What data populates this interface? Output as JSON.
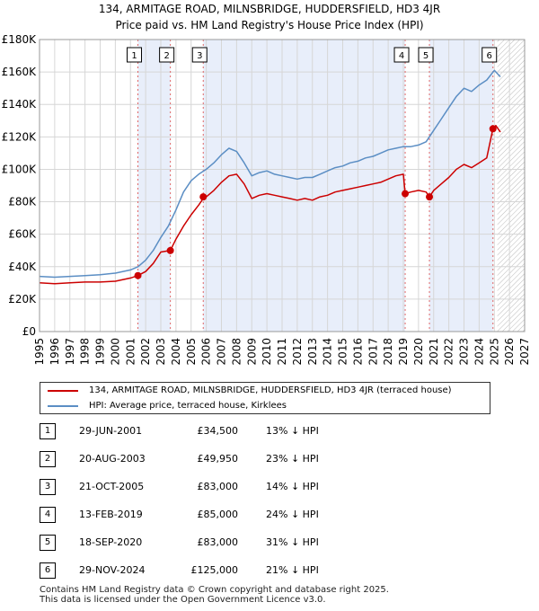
{
  "chart_data": {
    "type": "line",
    "title": "134, ARMITAGE ROAD, MILNSBRIDGE, HUDDERSFIELD, HD3 4JR",
    "subtitle": "Price paid vs. HM Land Registry's House Price Index (HPI)",
    "xlim": [
      1995,
      2027
    ],
    "ylim": [
      0,
      180000
    ],
    "x_ticks": [
      "1995",
      "1996",
      "1997",
      "1998",
      "1999",
      "2000",
      "2001",
      "2002",
      "2003",
      "2004",
      "2005",
      "2006",
      "2007",
      "2008",
      "2009",
      "2010",
      "2011",
      "2012",
      "2013",
      "2014",
      "2015",
      "2016",
      "2017",
      "2018",
      "2019",
      "2020",
      "2021",
      "2022",
      "2023",
      "2024",
      "2025",
      "2026",
      "2027"
    ],
    "y_ticks": [
      {
        "value": 0,
        "label": "£0"
      },
      {
        "value": 20000,
        "label": "£20K"
      },
      {
        "value": 40000,
        "label": "£40K"
      },
      {
        "value": 60000,
        "label": "£60K"
      },
      {
        "value": 80000,
        "label": "£80K"
      },
      {
        "value": 100000,
        "label": "£100K"
      },
      {
        "value": 120000,
        "label": "£120K"
      },
      {
        "value": 140000,
        "label": "£140K"
      },
      {
        "value": 160000,
        "label": "£160K"
      },
      {
        "value": 180000,
        "label": "£180K"
      }
    ],
    "future_start": 2025.2,
    "series": [
      {
        "name": "134, ARMITAGE ROAD, MILNSBRIDGE, HUDDERSFIELD, HD3 4JR (terraced house)",
        "color": "#cc0000",
        "x": [
          1995.0,
          1996.0,
          1997.0,
          1998.0,
          1999.0,
          2000.0,
          2001.0,
          2001.49,
          2002.0,
          2002.5,
          2003.0,
          2003.63,
          2004.0,
          2004.5,
          2005.0,
          2005.5,
          2005.8,
          2006.0,
          2006.5,
          2007.0,
          2007.5,
          2008.0,
          2008.5,
          2009.0,
          2009.5,
          2010.0,
          2010.5,
          2011.0,
          2011.5,
          2012.0,
          2012.5,
          2013.0,
          2013.5,
          2014.0,
          2014.5,
          2015.0,
          2015.5,
          2016.0,
          2016.5,
          2017.0,
          2017.5,
          2018.0,
          2018.5,
          2019.0,
          2019.12,
          2019.5,
          2020.0,
          2020.5,
          2020.72,
          2021.0,
          2021.5,
          2022.0,
          2022.5,
          2023.0,
          2023.5,
          2024.0,
          2024.5,
          2024.91,
          2025.1,
          2025.4
        ],
        "values": [
          30000,
          29500,
          30000,
          30500,
          30500,
          31000,
          33000,
          34500,
          37000,
          42000,
          49000,
          49950,
          57000,
          65000,
          72000,
          78000,
          82000,
          83000,
          87000,
          92000,
          96000,
          97000,
          91000,
          82000,
          84000,
          85000,
          84000,
          83000,
          82000,
          81000,
          82000,
          81000,
          83000,
          84000,
          86000,
          87000,
          88000,
          89000,
          90000,
          91000,
          92000,
          94000,
          96000,
          97000,
          85000,
          86000,
          87000,
          86000,
          83000,
          87000,
          91000,
          95000,
          100000,
          103000,
          101000,
          104000,
          107000,
          125000,
          127000,
          123000
        ]
      },
      {
        "name": "HPI: Average price, terraced house, Kirklees",
        "color": "#5b8ec4",
        "x": [
          1995.0,
          1996.0,
          1997.0,
          1998.0,
          1999.0,
          2000.0,
          2001.0,
          2001.5,
          2002.0,
          2002.5,
          2003.0,
          2003.5,
          2004.0,
          2004.5,
          2005.0,
          2005.5,
          2006.0,
          2006.5,
          2007.0,
          2007.5,
          2008.0,
          2008.5,
          2009.0,
          2009.5,
          2010.0,
          2010.5,
          2011.0,
          2011.5,
          2012.0,
          2012.5,
          2013.0,
          2013.5,
          2014.0,
          2014.5,
          2015.0,
          2015.5,
          2016.0,
          2016.5,
          2017.0,
          2017.5,
          2018.0,
          2018.5,
          2019.0,
          2019.5,
          2020.0,
          2020.5,
          2021.0,
          2021.5,
          2022.0,
          2022.5,
          2023.0,
          2023.5,
          2024.0,
          2024.5,
          2025.0,
          2025.4
        ],
        "values": [
          34000,
          33500,
          34000,
          34500,
          35000,
          36000,
          38000,
          40000,
          44000,
          50000,
          58000,
          65000,
          75000,
          86000,
          93000,
          97000,
          100000,
          104000,
          109000,
          113000,
          111000,
          104000,
          96000,
          98000,
          99000,
          97000,
          96000,
          95000,
          94000,
          95000,
          95000,
          97000,
          99000,
          101000,
          102000,
          104000,
          105000,
          107000,
          108000,
          110000,
          112000,
          113000,
          114000,
          114000,
          115000,
          117000,
          124000,
          131000,
          138000,
          145000,
          150000,
          148000,
          152000,
          155000,
          161000,
          157000
        ]
      }
    ],
    "annotations": [
      {
        "label": "1",
        "x": 2001.49,
        "y": 34500
      },
      {
        "label": "2",
        "x": 2003.63,
        "y": 49950
      },
      {
        "label": "3",
        "x": 2005.8,
        "y": 83000
      },
      {
        "label": "4",
        "x": 2019.12,
        "y": 85000
      },
      {
        "label": "5",
        "x": 2020.72,
        "y": 83000
      },
      {
        "label": "6",
        "x": 2024.91,
        "y": 125000
      }
    ]
  },
  "legend": {
    "property_label": "134, ARMITAGE ROAD, MILNSBRIDGE, HUDDERSFIELD, HD3 4JR (terraced house)",
    "hpi_label": "HPI: Average price, terraced house, Kirklees",
    "property_color": "#cc0000",
    "hpi_color": "#5b8ec4"
  },
  "sales": [
    {
      "num": "1",
      "date": "29-JUN-2001",
      "price": "£34,500",
      "delta": "13% ↓ HPI"
    },
    {
      "num": "2",
      "date": "20-AUG-2003",
      "price": "£49,950",
      "delta": "23% ↓ HPI"
    },
    {
      "num": "3",
      "date": "21-OCT-2005",
      "price": "£83,000",
      "delta": "14% ↓ HPI"
    },
    {
      "num": "4",
      "date": "13-FEB-2019",
      "price": "£85,000",
      "delta": "24% ↓ HPI"
    },
    {
      "num": "5",
      "date": "18-SEP-2020",
      "price": "£83,000",
      "delta": "31% ↓ HPI"
    },
    {
      "num": "6",
      "date": "29-NOV-2024",
      "price": "£125,000",
      "delta": "21% ↓ HPI"
    }
  ],
  "footer": {
    "line1": "Contains HM Land Registry data © Crown copyright and database right 2025.",
    "line2": "This data is licensed under the Open Government Licence v3.0."
  }
}
